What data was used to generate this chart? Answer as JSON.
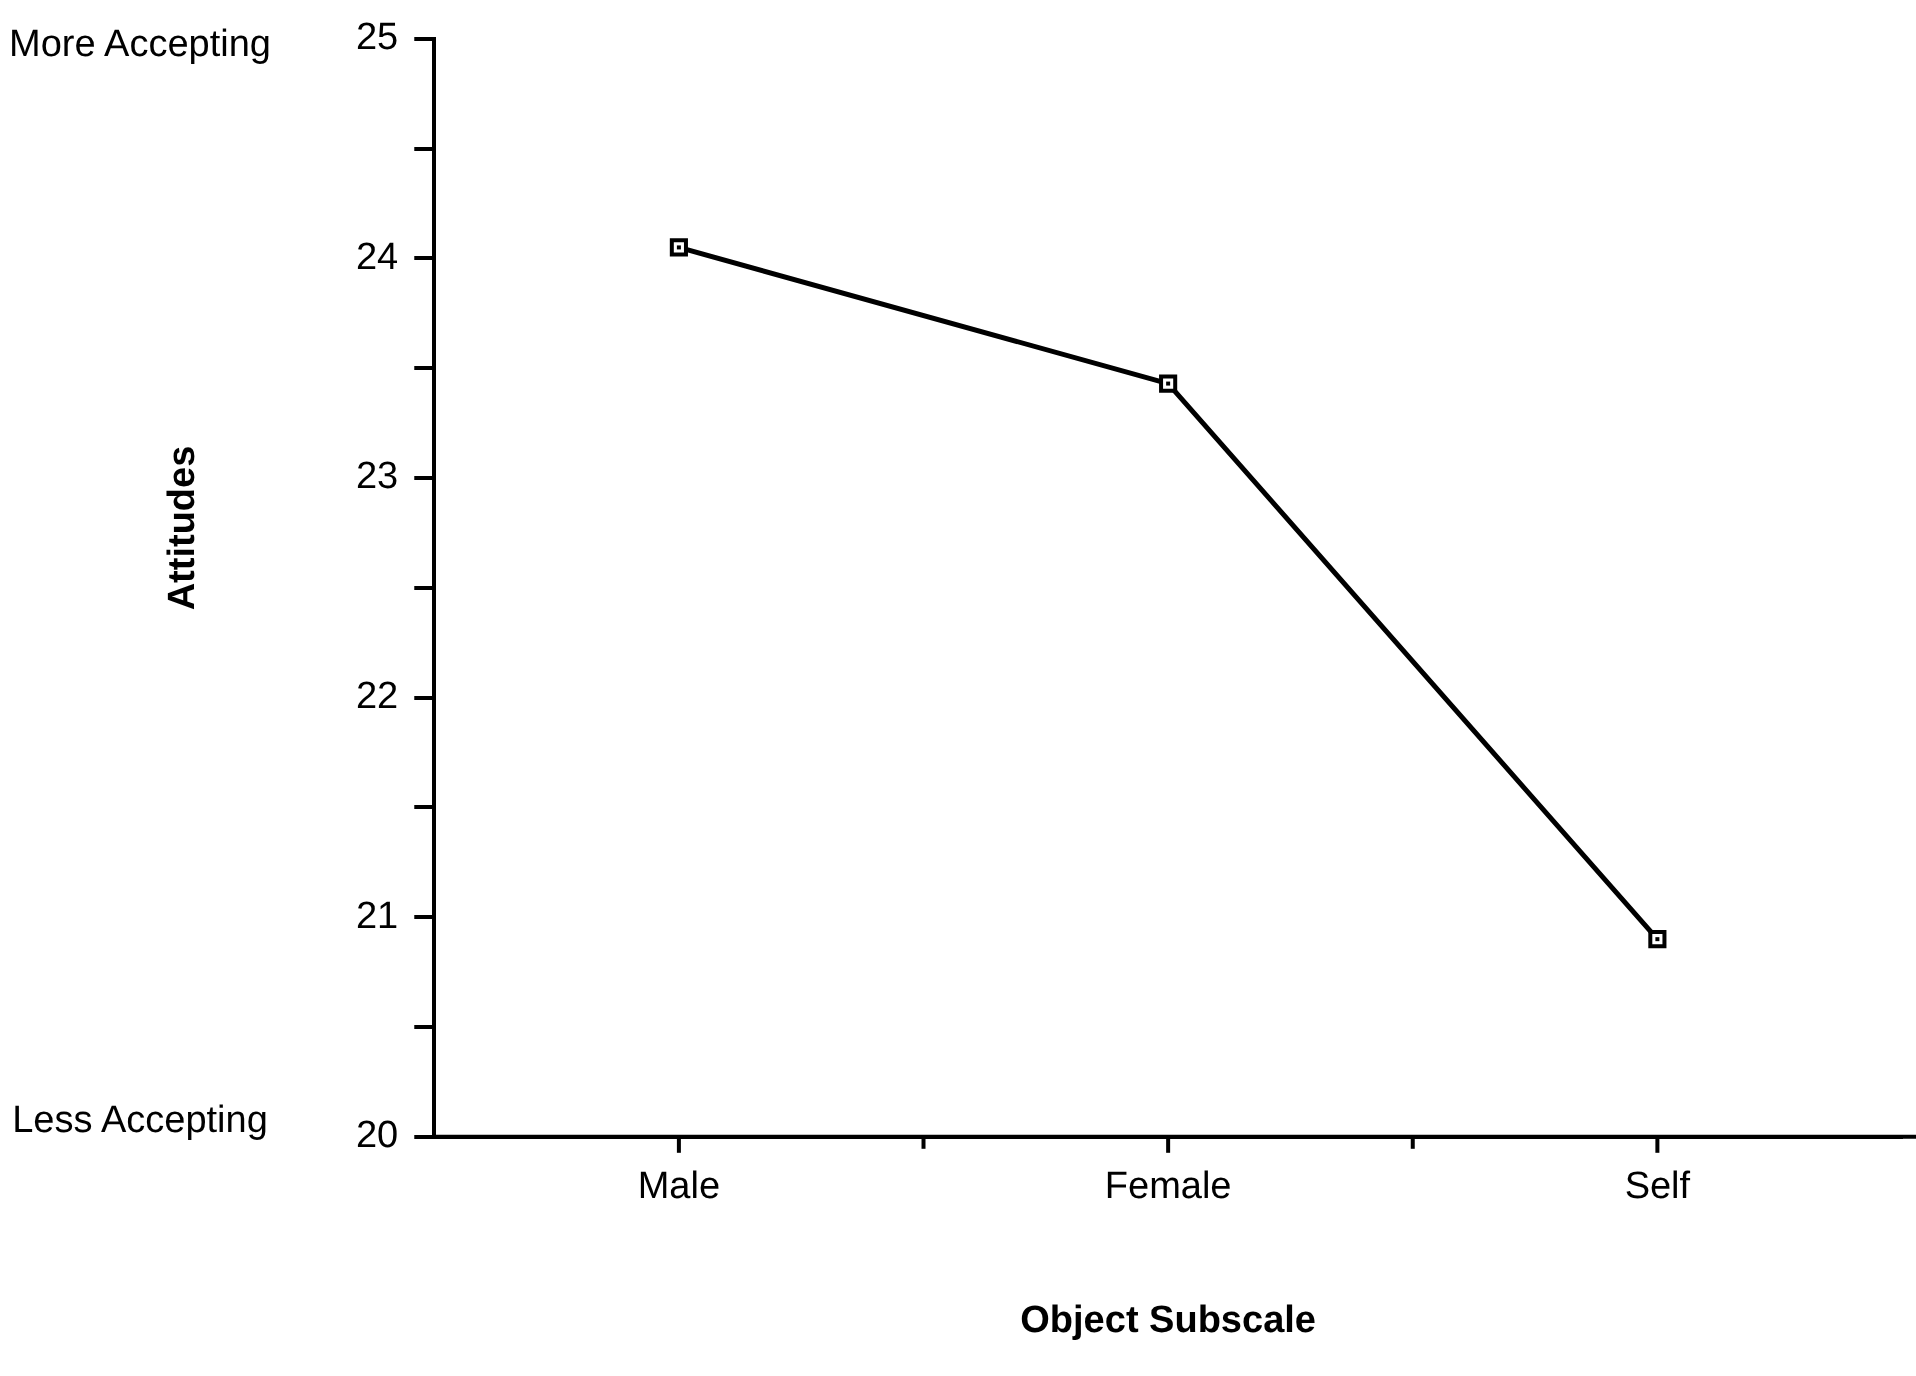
{
  "chart_data": {
    "type": "line",
    "xlabel": "Object Subscale",
    "ylabel": "Attitudes",
    "categories": [
      "Male",
      "Female",
      "Self"
    ],
    "series": [
      {
        "color": "#000000",
        "values": [
          24.05,
          23.43,
          20.9
        ]
      }
    ],
    "ylim": [
      20,
      25
    ],
    "yticks": [
      20,
      {
        "value": 20.5,
        "label": null
      },
      21,
      {
        "value": 21.5,
        "label": null
      },
      22,
      {
        "value": 22.5,
        "label": null
      },
      23,
      {
        "value": 23.5,
        "label": null
      },
      24,
      {
        "value": 24.5,
        "label": null
      },
      25
    ],
    "grid": false,
    "legend": false,
    "marker": "square",
    "line_style": "solid",
    "annotations": [
      "More Accepting",
      "Less Accepting"
    ]
  }
}
